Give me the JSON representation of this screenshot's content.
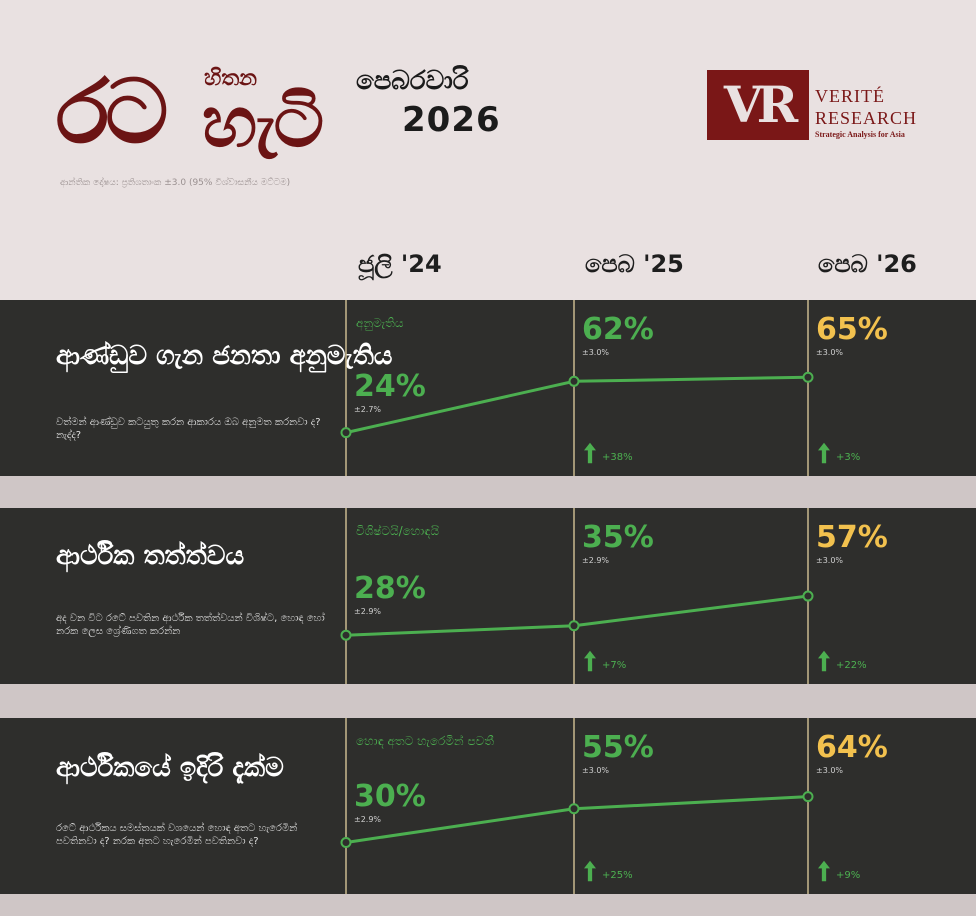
{
  "header": {
    "brand_big": "රට",
    "brand_small": "හිතන",
    "brand_big2": "හැටි",
    "issue_month": "පෙබරවාරි",
    "issue_year": "2026",
    "method_note": "ආන්තික දෝෂය: ප්‍රතිශතාංක ±3.0 (95% විශ්වාසනීය මට්ටම)"
  },
  "logo": {
    "mark": "VR",
    "name_line1": "VERITÉ",
    "name_line2": "RESEARCH",
    "tagline": "Strategic Analysis for Asia"
  },
  "columns": [
    "ජූලි '24",
    "පෙබ '25",
    "පෙබ '26"
  ],
  "colors": {
    "band": "#2e2e2c",
    "accent_green": "#4caf50",
    "latest_yellow": "#f2c14e",
    "brand_red": "#6b1414"
  },
  "chart_data": [
    {
      "type": "line",
      "title": "ආණ්ඩුව ගැන ජනතා අනුමැතිය",
      "subtitle": "වත්මන් ආණ්ඩුව කටයුතු කරන ආකාරය ඔබ අනුමත කරනවා ද? නැද්ද?",
      "series_label": "අනුමැතිය",
      "categories": [
        "ජූලි '24",
        "පෙබ '25",
        "පෙබ '26"
      ],
      "values": [
        24,
        62,
        65
      ],
      "labels": [
        "24%",
        "62%",
        "65%"
      ],
      "moe": [
        "±2.7%",
        "±3.0%",
        "±3.0%"
      ],
      "deltas": [
        "",
        "+38%",
        "+3%"
      ]
    },
    {
      "type": "line",
      "title": "ආර්ථික තත්ත්වය",
      "subtitle": "අද වන විට රටේ පවතින ආර්ථික තත්ත්වයන් විශිෂ්ට, හොඳ හෝ නරක ලෙස ශ්‍රේණිගත කරන්න",
      "series_label": "විශිෂ්ටයි/හොඳයි",
      "categories": [
        "ජූලි '24",
        "පෙබ '25",
        "පෙබ '26"
      ],
      "values": [
        28,
        35,
        57
      ],
      "labels": [
        "28%",
        "35%",
        "57%"
      ],
      "moe": [
        "±2.9%",
        "±2.9%",
        "±3.0%"
      ],
      "deltas": [
        "",
        "+7%",
        "+22%"
      ]
    },
    {
      "type": "line",
      "title": "ආර්ථිකයේ ඉදිරි දැක්ම",
      "subtitle": "රටේ ආර්ථිකය සමස්තයක් වශයෙන් හොඳ අතට හැරෙමින් පවතිනවා ද? නරක අතට හැරෙමින් පවතිනවා ද?",
      "series_label": "හොඳ අතට හැරෙමින් පවතී",
      "categories": [
        "ජූලි '24",
        "පෙබ '25",
        "පෙබ '26"
      ],
      "values": [
        30,
        55,
        64
      ],
      "labels": [
        "30%",
        "55%",
        "64%"
      ],
      "moe": [
        "±2.9%",
        "±3.0%",
        "±3.0%"
      ],
      "deltas": [
        "",
        "+25%",
        "+9%"
      ]
    }
  ]
}
